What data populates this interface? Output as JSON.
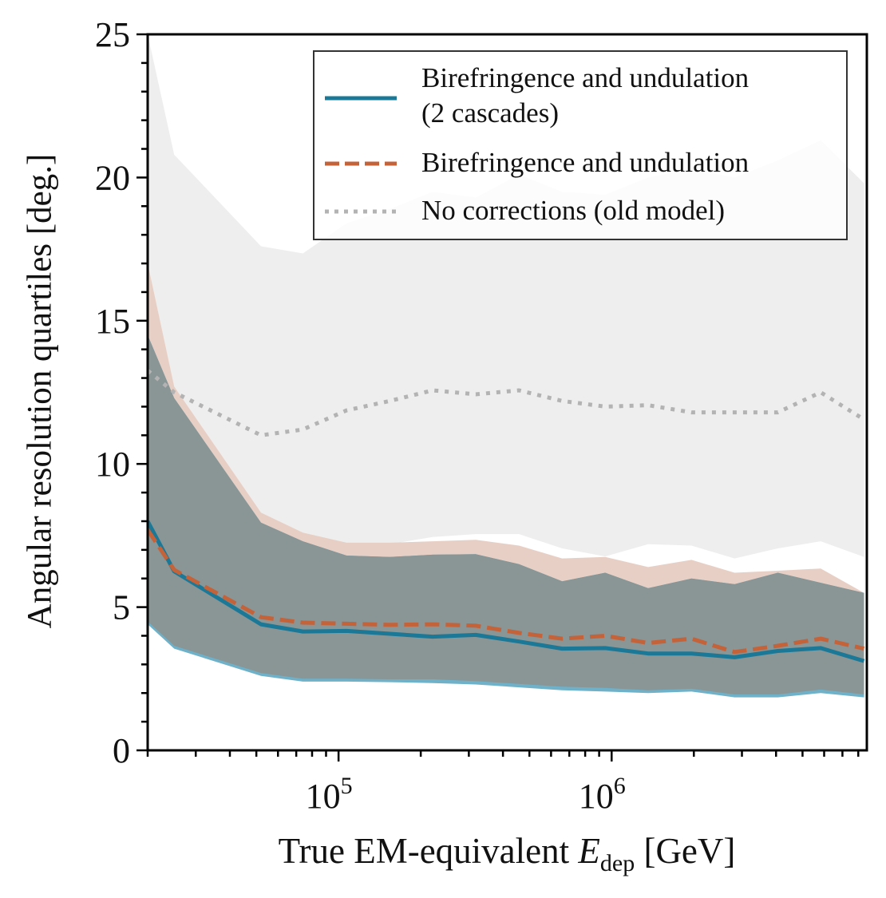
{
  "chart_data": {
    "type": "line",
    "xlabel_prefix": "True EM-equivalent",
    "xlabel_symbol": "E",
    "xlabel_subscript": "dep",
    "xlabel_suffix": "[GeV]",
    "ylabel": "Angular resolution quartiles [deg.]",
    "xscale": "log",
    "xlim": [
      20000,
      8600000
    ],
    "ylim": [
      0,
      25
    ],
    "yticks": [
      0,
      5,
      10,
      15,
      20,
      25
    ],
    "xticks": [
      {
        "base": "10",
        "exp": "5",
        "value": 100000
      },
      {
        "base": "10",
        "exp": "6",
        "value": 1000000
      }
    ],
    "grid": false,
    "legend_position": "top-right",
    "x": [
      20000,
      25000,
      52000,
      74000,
      107000,
      154000,
      221000,
      318000,
      458000,
      659000,
      948000,
      1360000,
      1960000,
      2820000,
      4060000,
      5830000,
      8400000
    ],
    "series": [
      {
        "name": "Birefringence and undulation (2 cascades)",
        "legend_lines": [
          "Birefringence and undulation",
          "(2 cascades)"
        ],
        "style": "solid",
        "color": "#1b7896",
        "band_color": "#6fb1c9",
        "median": [
          8.0,
          6.25,
          4.4,
          4.15,
          4.17,
          4.07,
          3.97,
          4.03,
          3.8,
          3.55,
          3.57,
          3.38,
          3.38,
          3.25,
          3.47,
          3.57,
          3.12
        ],
        "lower": [
          4.4,
          3.55,
          2.6,
          2.4,
          2.4,
          2.38,
          2.35,
          2.3,
          2.2,
          2.1,
          2.05,
          2.0,
          2.05,
          1.85,
          1.85,
          2.0,
          1.85
        ],
        "upper": [
          14.5,
          12.3,
          7.95,
          7.3,
          6.8,
          6.75,
          6.83,
          6.85,
          6.5,
          5.9,
          6.2,
          5.66,
          6.0,
          5.8,
          6.2,
          5.85,
          5.5
        ]
      },
      {
        "name": "Birefringence and undulation",
        "legend_lines": [
          "Birefringence and undulation"
        ],
        "style": "dashed",
        "color": "#c4623a",
        "band_color": "#e7cfc5",
        "median": [
          7.7,
          6.3,
          4.65,
          4.46,
          4.42,
          4.38,
          4.4,
          4.35,
          4.1,
          3.9,
          4.0,
          3.75,
          3.9,
          3.43,
          3.65,
          3.9,
          3.55
        ],
        "lower": [
          4.5,
          3.65,
          2.7,
          2.5,
          2.5,
          2.48,
          2.48,
          2.42,
          2.32,
          2.22,
          2.18,
          2.1,
          2.15,
          1.95,
          1.95,
          2.12,
          1.95
        ],
        "upper": [
          17.0,
          12.7,
          8.3,
          7.6,
          7.25,
          7.25,
          7.3,
          7.35,
          7.15,
          6.7,
          6.75,
          6.4,
          6.65,
          6.2,
          6.27,
          6.35,
          5.5
        ]
      },
      {
        "name": "No corrections (old model)",
        "legend_lines": [
          "No corrections (old model)"
        ],
        "style": "dotted",
        "color": "#b3b3b3",
        "band_color": "#eeeeee",
        "median": [
          13.26,
          12.5,
          11.0,
          11.2,
          11.87,
          12.2,
          12.57,
          12.43,
          12.57,
          12.2,
          12.0,
          12.05,
          11.8,
          11.8,
          11.8,
          12.5,
          11.55
        ],
        "lower": [
          7.25,
          7.1,
          6.9,
          6.9,
          7.0,
          7.2,
          7.45,
          7.55,
          7.55,
          7.05,
          6.77,
          7.2,
          7.15,
          6.7,
          7.05,
          7.3,
          6.75
        ],
        "upper": [
          25,
          20.8,
          17.6,
          17.35,
          18.4,
          18.9,
          19.5,
          19.3,
          20.1,
          19.5,
          19.4,
          20.0,
          20.3,
          20.0,
          20.6,
          21.3,
          19.8
        ]
      }
    ]
  }
}
